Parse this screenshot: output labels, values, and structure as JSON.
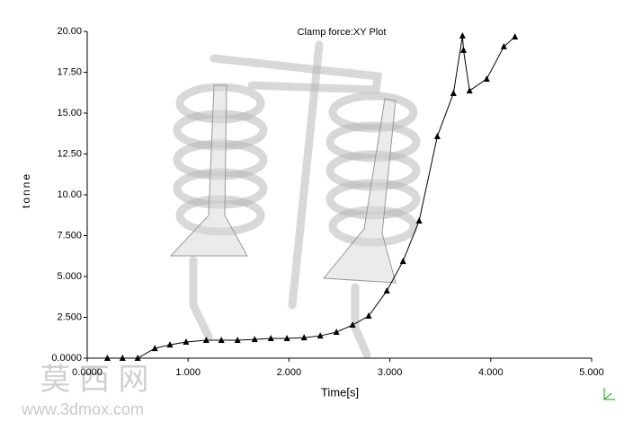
{
  "chart_data": {
    "type": "line",
    "title": "Clamp force:XY Plot",
    "x_label": "Time[s]",
    "y_label": "tonne",
    "x": [
      0.2,
      0.35,
      0.5,
      0.67,
      0.82,
      0.98,
      1.18,
      1.33,
      1.49,
      1.66,
      1.82,
      1.98,
      2.15,
      2.31,
      2.47,
      2.63,
      2.79,
      2.97,
      3.13,
      3.29,
      3.47,
      3.63,
      3.72,
      3.73,
      3.79,
      3.96,
      4.13,
      4.24
    ],
    "series": [
      {
        "name": "Clamp force",
        "color": "#000000",
        "values": [
          0,
          0,
          0,
          0.6,
          0.82,
          0.99,
          1.1,
          1.1,
          1.1,
          1.15,
          1.21,
          1.21,
          1.26,
          1.37,
          1.59,
          2.03,
          2.58,
          4.12,
          5.93,
          8.41,
          13.57,
          16.21,
          19.73,
          18.85,
          16.37,
          17.09,
          19.07,
          19.67
        ]
      }
    ],
    "xlim": [
      0,
      5
    ],
    "ylim": [
      0,
      20
    ],
    "xticks": [
      {
        "value": 0,
        "label": "0.0000"
      },
      {
        "value": 1,
        "label": "1.000"
      },
      {
        "value": 2,
        "label": "2.000"
      },
      {
        "value": 3,
        "label": "3.000"
      },
      {
        "value": 4,
        "label": "4.000"
      },
      {
        "value": 5,
        "label": "5.000"
      }
    ],
    "yticks": [
      {
        "value": 0,
        "label": "0.0000"
      },
      {
        "value": 2.5,
        "label": "2.500"
      },
      {
        "value": 5,
        "label": "5.000"
      },
      {
        "value": 7.5,
        "label": "7.500"
      },
      {
        "value": 10,
        "label": "10.00"
      },
      {
        "value": 12.5,
        "label": "12.50"
      },
      {
        "value": 15,
        "label": "15.00"
      },
      {
        "value": 17.5,
        "label": "17.50"
      },
      {
        "value": 20,
        "label": "20.00"
      }
    ],
    "grid": false,
    "marker": "triangle"
  },
  "watermark": {
    "logo": "莫 西 网",
    "url": "www.3dmox.com"
  }
}
